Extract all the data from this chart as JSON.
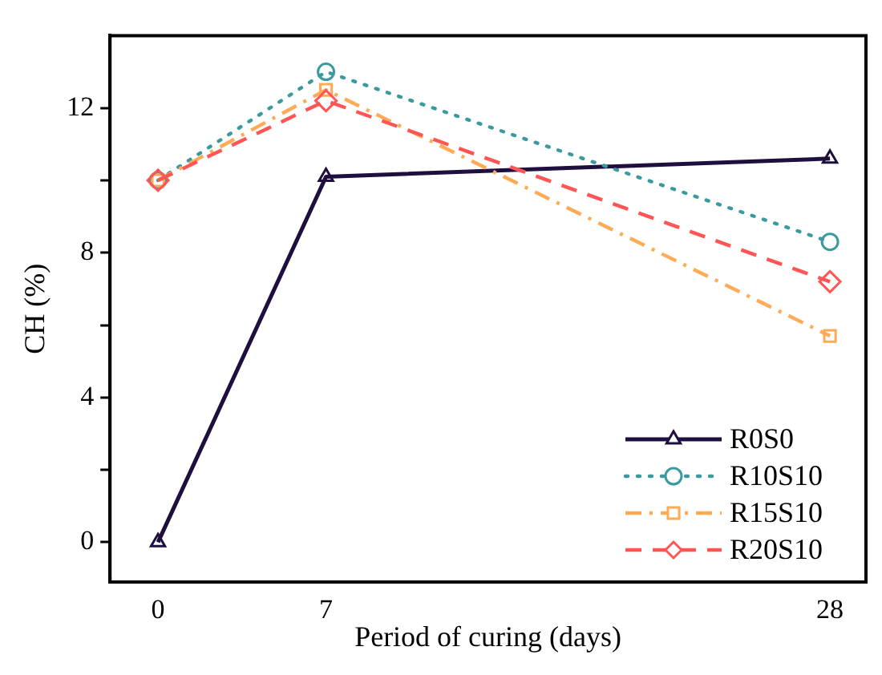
{
  "chart_data": {
    "type": "line",
    "xlabel": "Period of curing (days)",
    "ylabel": "CH (%)",
    "x": [
      0,
      7,
      28
    ],
    "xlim": [
      -2,
      29.5
    ],
    "xticks": [
      0,
      7,
      28
    ],
    "ylim": [
      -1.1,
      14
    ],
    "yticks": [
      0,
      {
        "value": 2,
        "label": null
      },
      4,
      {
        "value": 6,
        "label": null
      },
      8,
      {
        "value": 10,
        "label": null
      },
      12
    ],
    "grid": false,
    "legend": "bottom right",
    "series": [
      {
        "name": "R0S0",
        "color": "#1f0f3f",
        "values": [
          0,
          10.1,
          10.6
        ],
        "marker": "triangle",
        "line_style": "solid"
      },
      {
        "name": "R10S10",
        "color": "#3a9a9e",
        "values": [
          10,
          13,
          8.3
        ],
        "marker": "circle",
        "line_style": "dotted"
      },
      {
        "name": "R15S10",
        "color": "#ffaa55",
        "values": [
          10,
          12.5,
          5.7
        ],
        "marker": "square",
        "line_style": "dashdot"
      },
      {
        "name": "R20S10",
        "color": "#ff5555",
        "values": [
          10,
          12.2,
          7.2
        ],
        "marker": "diamond",
        "line_style": "dashed"
      }
    ]
  }
}
